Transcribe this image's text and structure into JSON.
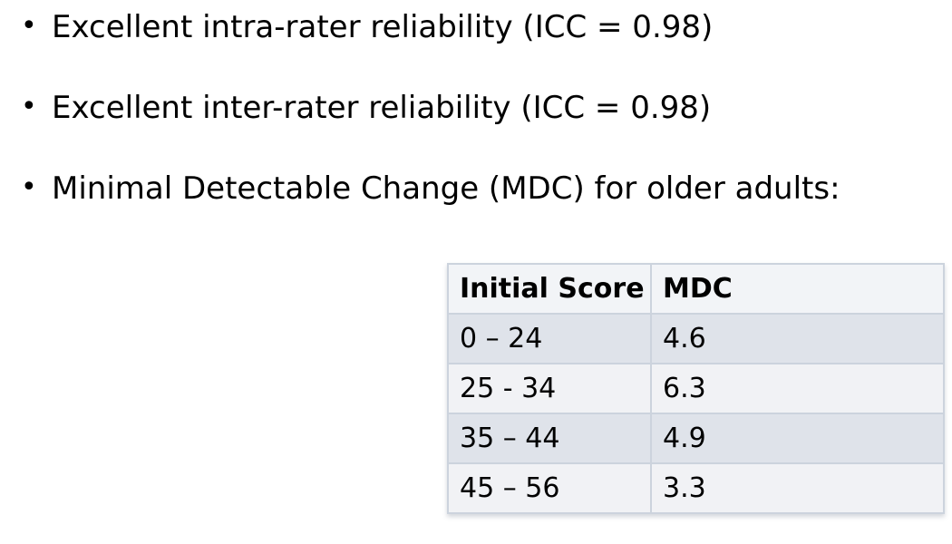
{
  "bullets": [
    "Excellent intra-rater reliability (ICC = 0.98)",
    "Excellent inter-rater reliability (ICC = 0.98)",
    "Minimal Detectable Change (MDC) for older adults:"
  ],
  "table": {
    "headers": [
      "Initial Score",
      "MDC"
    ],
    "rows": [
      [
        "0 – 24",
        "4.6"
      ],
      [
        "25 - 34",
        "6.3"
      ],
      [
        "35 – 44",
        "4.9"
      ],
      [
        "45 – 56",
        "3.3"
      ]
    ]
  },
  "colors": {
    "background": "#ffffff",
    "text": "#000000",
    "table_header_bg": "#f2f4f7",
    "table_row_dark_bg": "#dfe3ea",
    "table_row_light_bg": "#f1f2f5",
    "table_border": "#b9c3d0",
    "table_inner_border": "#ccd3dd"
  }
}
